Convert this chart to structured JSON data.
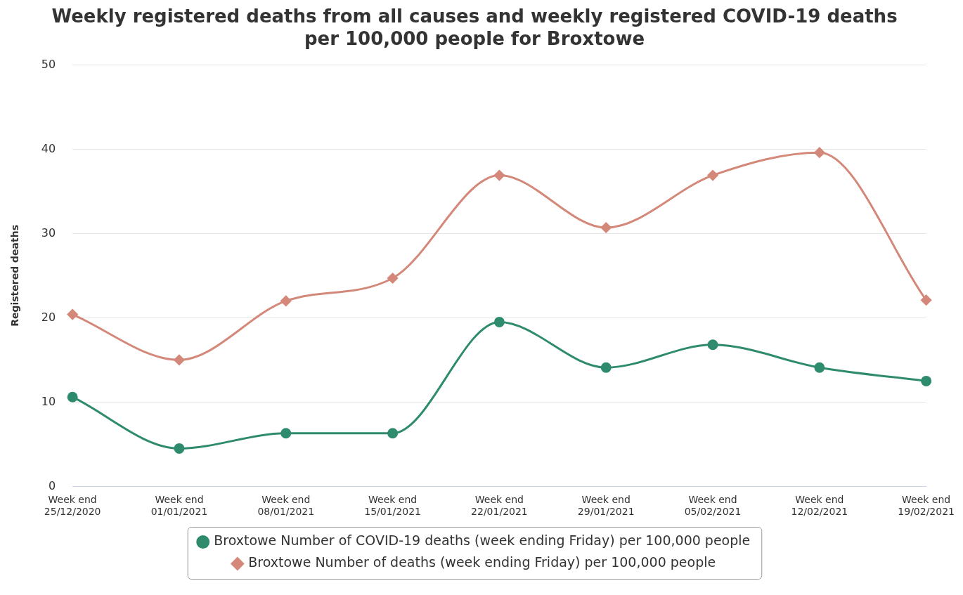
{
  "chart_data": {
    "type": "line",
    "title": "Weekly registered deaths from all causes and weekly registered COVID-19 deaths per 100,000 people for Broxtowe",
    "ylabel": "Registered deaths",
    "categories": [
      "Week end 25/12/2020",
      "Week end 01/01/2021",
      "Week end 08/01/2021",
      "Week end 15/01/2021",
      "Week end 22/01/2021",
      "Week end 29/01/2021",
      "Week end 05/02/2021",
      "Week end 12/02/2021",
      "Week end 19/02/2021"
    ],
    "series": [
      {
        "name": "Broxtowe Number of COVID-19 deaths (week ending Friday) per 100,000 people",
        "color": "#2e8b6e",
        "marker": "circle",
        "values": [
          10.6,
          4.5,
          6.3,
          6.3,
          19.5,
          14.1,
          16.8,
          14.1,
          12.5
        ]
      },
      {
        "name": "Broxtowe Number of deaths (week ending Friday) per 100,000 people",
        "color": "#d4887a",
        "marker": "diamond",
        "values": [
          20.4,
          15.0,
          22.0,
          24.7,
          36.9,
          30.7,
          36.9,
          39.6,
          22.1
        ]
      }
    ],
    "ylim": [
      0,
      50
    ],
    "yticks": [
      0,
      10,
      20,
      30,
      40,
      50
    ],
    "grid": "y",
    "legend": "bottom"
  }
}
